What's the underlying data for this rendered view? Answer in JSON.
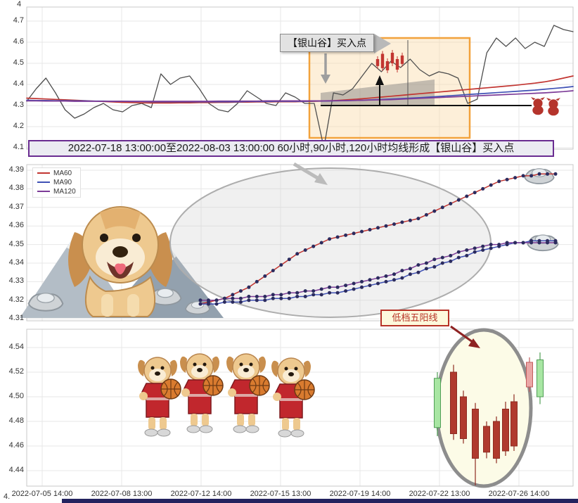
{
  "banner": {
    "text": "2022-07-18 13:00:00至2022-08-03 13:00:00 60小时,90小时,120小时均线形成【银山谷】买入点"
  },
  "annotations": {
    "buy_point_label": "【银山谷】买入点",
    "five_yang_label": "低档五阳线",
    "partial_axis_label": "4.",
    "partial_top_label": "4"
  },
  "legend": {
    "items": [
      {
        "label": "MA60",
        "color": "#c23531"
      },
      {
        "label": "MA90",
        "color": "#3f51b5"
      },
      {
        "label": "MA120",
        "color": "#7d3c98"
      }
    ]
  },
  "x_axis": {
    "labels": [
      "2022-07-05 14:00",
      "2022-07-08 13:00",
      "2022-07-12 14:00",
      "2022-07-15 13:00",
      "2022-07-19 14:00",
      "2022-07-22 13:00",
      "2022-07-26 14:00"
    ]
  },
  "chart_data": [
    {
      "type": "line",
      "panel": "price-overview",
      "ylim": [
        4.1,
        4.7
      ],
      "yticks": [
        "4.7",
        "4.6",
        "4.5",
        "4.4",
        "4.3",
        "4.2",
        "4.1"
      ],
      "series": [
        {
          "name": "price",
          "color": "#4d4d4d",
          "width": 1.3,
          "values": [
            4.32,
            4.38,
            4.43,
            4.36,
            4.28,
            4.24,
            4.26,
            4.29,
            4.31,
            4.28,
            4.27,
            4.3,
            4.31,
            4.29,
            4.45,
            4.4,
            4.43,
            4.44,
            4.38,
            4.31,
            4.28,
            4.27,
            4.31,
            4.37,
            4.34,
            4.31,
            4.3,
            4.36,
            4.34,
            4.31,
            4.31,
            4.1,
            4.36,
            4.35,
            4.38,
            4.44,
            4.5,
            4.46,
            4.51,
            4.48,
            4.52,
            4.47,
            4.44,
            4.46,
            4.45,
            4.43,
            4.31,
            4.33,
            4.55,
            4.62,
            4.58,
            4.62,
            4.57,
            4.6,
            4.58,
            4.68,
            4.66,
            4.65
          ]
        },
        {
          "name": "MA60",
          "color": "#c23531",
          "width": 1.7,
          "values": [
            4.335,
            4.333,
            4.331,
            4.329,
            4.327,
            4.325,
            4.323,
            4.321,
            4.319,
            4.317,
            4.315,
            4.314,
            4.313,
            4.312,
            4.312,
            4.312,
            4.313,
            4.313,
            4.314,
            4.314,
            4.315,
            4.315,
            4.316,
            4.316,
            4.317,
            4.317,
            4.318,
            4.318,
            4.318,
            4.319,
            4.32,
            4.321,
            4.323,
            4.326,
            4.329,
            4.332,
            4.336,
            4.34,
            4.344,
            4.348,
            4.352,
            4.356,
            4.36,
            4.364,
            4.368,
            4.372,
            4.376,
            4.38,
            4.384,
            4.388,
            4.392,
            4.396,
            4.401,
            4.406,
            4.412,
            4.42,
            4.43,
            4.44
          ]
        },
        {
          "name": "MA90",
          "color": "#3f51b5",
          "width": 1.7,
          "values": [
            4.325,
            4.324,
            4.324,
            4.323,
            4.323,
            4.322,
            4.322,
            4.321,
            4.321,
            4.32,
            4.32,
            4.319,
            4.319,
            4.318,
            4.318,
            4.318,
            4.318,
            4.318,
            4.318,
            4.318,
            4.318,
            4.318,
            4.318,
            4.319,
            4.319,
            4.319,
            4.32,
            4.32,
            4.32,
            4.32,
            4.321,
            4.321,
            4.322,
            4.323,
            4.324,
            4.325,
            4.327,
            4.329,
            4.331,
            4.333,
            4.335,
            4.337,
            4.34,
            4.343,
            4.346,
            4.349,
            4.352,
            4.355,
            4.358,
            4.361,
            4.364,
            4.367,
            4.37,
            4.373,
            4.377,
            4.381,
            4.385,
            4.39
          ]
        },
        {
          "name": "MA120",
          "color": "#7d3c98",
          "width": 1.7,
          "values": [
            4.322,
            4.322,
            4.321,
            4.321,
            4.321,
            4.32,
            4.32,
            4.32,
            4.32,
            4.32,
            4.32,
            4.32,
            4.32,
            4.32,
            4.32,
            4.32,
            4.32,
            4.32,
            4.32,
            4.32,
            4.321,
            4.321,
            4.321,
            4.321,
            4.321,
            4.322,
            4.322,
            4.322,
            4.322,
            4.322,
            4.322,
            4.322,
            4.323,
            4.323,
            4.324,
            4.325,
            4.326,
            4.327,
            4.328,
            4.33,
            4.332,
            4.334,
            4.336,
            4.338,
            4.34,
            4.342,
            4.344,
            4.346,
            4.348,
            4.35,
            4.352,
            4.354,
            4.356,
            4.358,
            4.36,
            4.363,
            4.366,
            4.37
          ]
        }
      ],
      "mini_candles": {
        "color": "#c23531",
        "bars": [
          [
            4.52,
            4.487
          ],
          [
            4.545,
            4.477
          ],
          [
            4.51,
            4.467
          ],
          [
            4.55,
            4.5
          ],
          [
            4.52,
            4.47
          ],
          [
            4.537,
            4.497
          ]
        ]
      }
    },
    {
      "type": "line",
      "panel": "ma-zoom",
      "ylim": [
        4.31,
        4.39
      ],
      "yticks": [
        "4.39",
        "4.38",
        "4.37",
        "4.36",
        "4.35",
        "4.34",
        "4.33",
        "4.32",
        "4.31"
      ],
      "marker": {
        "color": "#2b2b5e",
        "radius": 2.5
      },
      "series": [
        {
          "name": "MA60",
          "color": "#c23531",
          "width": 1.5,
          "values": [
            4.318,
            4.319,
            4.32,
            4.321,
            4.323,
            4.325,
            4.327,
            4.33,
            4.333,
            4.336,
            4.339,
            4.342,
            4.345,
            4.347,
            4.349,
            4.351,
            4.353,
            4.354,
            4.355,
            4.356,
            4.357,
            4.358,
            4.359,
            4.36,
            4.361,
            4.362,
            4.363,
            4.364,
            4.366,
            4.368,
            4.37,
            4.372,
            4.374,
            4.376,
            4.378,
            4.38,
            4.382,
            4.384,
            4.385,
            4.386,
            4.387,
            4.387,
            4.388,
            4.388,
            4.388
          ]
        },
        {
          "name": "MA90",
          "color": "#3f51b5",
          "width": 1.5,
          "values": [
            4.318,
            4.318,
            4.318,
            4.319,
            4.319,
            4.319,
            4.32,
            4.32,
            4.32,
            4.321,
            4.321,
            4.321,
            4.322,
            4.322,
            4.323,
            4.323,
            4.324,
            4.324,
            4.325,
            4.326,
            4.327,
            4.328,
            4.329,
            4.33,
            4.331,
            4.332,
            4.334,
            4.335,
            4.337,
            4.338,
            4.34,
            4.341,
            4.343,
            4.344,
            4.346,
            4.347,
            4.348,
            4.349,
            4.35,
            4.351,
            4.351,
            4.352,
            4.352,
            4.352,
            4.352
          ]
        },
        {
          "name": "MA120",
          "color": "#7d3c98",
          "width": 1.5,
          "values": [
            4.32,
            4.32,
            4.32,
            4.321,
            4.321,
            4.321,
            4.322,
            4.322,
            4.322,
            4.323,
            4.323,
            4.324,
            4.324,
            4.325,
            4.325,
            4.326,
            4.327,
            4.327,
            4.328,
            4.329,
            4.33,
            4.331,
            4.332,
            4.333,
            4.334,
            4.336,
            4.337,
            4.339,
            4.34,
            4.342,
            4.343,
            4.344,
            4.346,
            4.347,
            4.348,
            4.349,
            4.35,
            4.35,
            4.351,
            4.351,
            4.351,
            4.351,
            4.351,
            4.351,
            4.351
          ]
        }
      ]
    },
    {
      "type": "candlestick",
      "panel": "candles",
      "ylim": [
        4.43,
        4.55
      ],
      "yticks": [
        "4.54",
        "4.52",
        "4.50",
        "4.48",
        "4.46",
        "4.44"
      ],
      "candles": [
        {
          "color": "green",
          "body": [
            4.475,
            4.515
          ],
          "wick": [
            4.468,
            4.52
          ]
        },
        {
          "color": "red",
          "body": [
            4.47,
            4.52
          ],
          "wick": [
            4.465,
            4.526
          ]
        },
        {
          "color": "red",
          "body": [
            4.466,
            4.5
          ],
          "wick": [
            4.462,
            4.505
          ]
        },
        {
          "color": "red",
          "body": [
            4.45,
            4.49
          ],
          "wick": [
            4.428,
            4.495
          ]
        },
        {
          "color": "red",
          "body": [
            4.455,
            4.476
          ],
          "wick": [
            4.45,
            4.48
          ]
        },
        {
          "color": "red",
          "body": [
            4.45,
            4.48
          ],
          "wick": [
            4.446,
            4.484
          ]
        },
        {
          "color": "red",
          "body": [
            4.456,
            4.49
          ],
          "wick": [
            4.452,
            4.496
          ]
        },
        {
          "color": "red",
          "body": [
            4.46,
            4.496
          ],
          "wick": [
            4.456,
            4.502
          ]
        },
        {
          "color": "pink",
          "body": [
            4.508,
            4.528
          ],
          "wick": [
            4.504,
            4.532
          ]
        },
        {
          "color": "green",
          "body": [
            4.5,
            4.53
          ],
          "wick": [
            4.494,
            4.536
          ]
        }
      ]
    }
  ]
}
